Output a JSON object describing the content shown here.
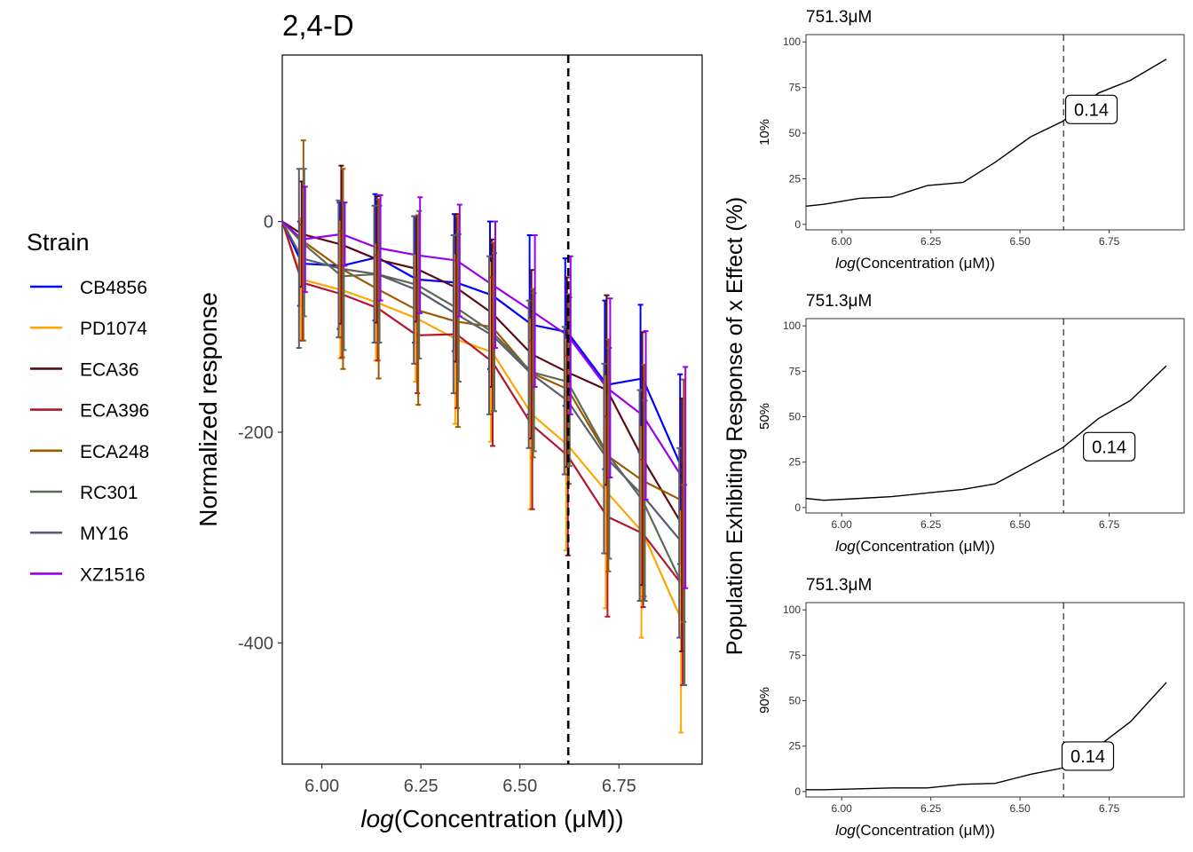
{
  "main_title": "2,4-D",
  "legend": {
    "title": "Strain",
    "items": [
      {
        "name": "CB4856",
        "color": "#0000FF"
      },
      {
        "name": "PD1074",
        "color": "#FFA500"
      },
      {
        "name": "ECA36",
        "color": "#5C0A14"
      },
      {
        "name": "ECA396",
        "color": "#B3162E"
      },
      {
        "name": "ECA248",
        "color": "#9C5A00"
      },
      {
        "name": "RC301",
        "color": "#5B6B55"
      },
      {
        "name": "MY16",
        "color": "#5C5C6E"
      },
      {
        "name": "XZ1516",
        "color": "#9B00EE"
      }
    ]
  },
  "right_ylabel": "Population Exhibiting Response of x Effect (%)",
  "chart_data": [
    {
      "type": "line",
      "title": "2,4-D",
      "xlabel_italic": "log",
      "xlabel_rest": "(Concentration (μM))",
      "ylabel": "Normalized response",
      "xlim": [
        5.9,
        6.96
      ],
      "ylim": [
        -515,
        158
      ],
      "x_ticks": [
        6.0,
        6.25,
        6.5,
        6.75
      ],
      "x_tick_labels": [
        "6.00",
        "6.25",
        "6.50",
        "6.75"
      ],
      "y_ticks": [
        0,
        -200,
        -400
      ],
      "y_tick_labels": [
        "0",
        "-200",
        "-400"
      ],
      "vline_x": 6.622,
      "x": [
        5.9,
        5.95,
        6.05,
        6.14,
        6.24,
        6.34,
        6.43,
        6.53,
        6.62,
        6.72,
        6.81,
        6.91
      ],
      "series": [
        {
          "name": "CB4856",
          "values": [
            0,
            -40,
            -42,
            -34,
            -55,
            -58,
            -70,
            -98,
            -105,
            -155,
            -149,
            -235
          ]
        },
        {
          "name": "PD1074",
          "values": [
            0,
            -55,
            -65,
            -77,
            -92,
            -112,
            -124,
            -183,
            -212,
            -257,
            -295,
            -380
          ]
        },
        {
          "name": "ECA36",
          "values": [
            0,
            -12,
            -22,
            -36,
            -45,
            -63,
            -87,
            -126,
            -143,
            -160,
            -225,
            -288
          ]
        },
        {
          "name": "ECA396",
          "values": [
            0,
            -58,
            -69,
            -82,
            -108,
            -107,
            -133,
            -193,
            -222,
            -280,
            -296,
            -345
          ]
        },
        {
          "name": "ECA248",
          "values": [
            0,
            -18,
            -45,
            -64,
            -84,
            -95,
            -100,
            -144,
            -159,
            -222,
            -246,
            -265
          ]
        },
        {
          "name": "RC301",
          "values": [
            0,
            -20,
            -52,
            -50,
            -60,
            -82,
            -105,
            -143,
            -152,
            -220,
            -265,
            -345
          ]
        },
        {
          "name": "MY16",
          "values": [
            0,
            -35,
            -45,
            -50,
            -65,
            -88,
            -108,
            -145,
            -170,
            -225,
            -260,
            -305
          ]
        },
        {
          "name": "XZ1516",
          "values": [
            0,
            -17,
            -12,
            -25,
            -32,
            -37,
            -60,
            -85,
            -108,
            -158,
            -184,
            -243
          ]
        }
      ],
      "error_bars": [
        {
          "name": "CB4856",
          "half_width": [
            0,
            40,
            60,
            60,
            60,
            65,
            70,
            85,
            70,
            80,
            70,
            90
          ]
        },
        {
          "name": "PD1074",
          "half_width": [
            0,
            58,
            65,
            55,
            60,
            80,
            85,
            90,
            100,
            110,
            100,
            105
          ]
        },
        {
          "name": "ECA36",
          "half_width": [
            0,
            50,
            75,
            60,
            50,
            70,
            70,
            80,
            90,
            90,
            120,
            120
          ]
        },
        {
          "name": "ECA396",
          "half_width": [
            0,
            55,
            60,
            50,
            55,
            70,
            80,
            80,
            95,
            95,
            70,
            95
          ]
        },
        {
          "name": "ECA248",
          "half_width": [
            0,
            95,
            95,
            85,
            90,
            100,
            80,
            80,
            90,
            110,
            110,
            115
          ]
        },
        {
          "name": "RC301",
          "half_width": [
            0,
            70,
            70,
            65,
            70,
            70,
            75,
            75,
            80,
            100,
            95,
            95
          ]
        },
        {
          "name": "MY16",
          "half_width": [
            0,
            85,
            65,
            65,
            70,
            75,
            75,
            70,
            70,
            90,
            100,
            90
          ]
        },
        {
          "name": "XZ1516",
          "half_width": [
            0,
            50,
            30,
            50,
            55,
            53,
            60,
            72,
            75,
            85,
            80,
            105
          ]
        }
      ]
    },
    {
      "type": "line",
      "title": "751.3μM",
      "ylabel": "10%",
      "xlabel_italic": "log",
      "xlabel_rest": "(Concentration (μM))",
      "xlim": [
        5.9,
        6.96
      ],
      "ylim": [
        -3,
        104
      ],
      "x_ticks": [
        6.0,
        6.25,
        6.5,
        6.75
      ],
      "x_tick_labels": [
        "6.00",
        "6.25",
        "6.50",
        "6.75"
      ],
      "y_ticks": [
        0,
        25,
        50,
        75,
        100
      ],
      "y_tick_labels": [
        "0",
        "25",
        "50",
        "75",
        "100"
      ],
      "vline_x": 6.622,
      "annotation": {
        "label": "0.14",
        "x": 6.7,
        "y": 63
      },
      "x": [
        5.9,
        5.95,
        6.05,
        6.14,
        6.24,
        6.34,
        6.43,
        6.53,
        6.62,
        6.72,
        6.81,
        6.91
      ],
      "values": [
        10,
        11,
        14.3,
        15,
        21.3,
        23,
        34,
        48,
        56.5,
        72,
        79,
        90.5
      ]
    },
    {
      "type": "line",
      "title": "751.3μM",
      "ylabel": "50%",
      "xlabel_italic": "log",
      "xlabel_rest": "(Concentration (μM))",
      "xlim": [
        5.9,
        6.96
      ],
      "ylim": [
        -3,
        104
      ],
      "x_ticks": [
        6.0,
        6.25,
        6.5,
        6.75
      ],
      "x_tick_labels": [
        "6.00",
        "6.25",
        "6.50",
        "6.75"
      ],
      "y_ticks": [
        0,
        25,
        50,
        75,
        100
      ],
      "y_tick_labels": [
        "0",
        "25",
        "50",
        "75",
        "100"
      ],
      "vline_x": 6.622,
      "annotation": {
        "label": "0.14",
        "x": 6.75,
        "y": 33.5
      },
      "x": [
        5.9,
        5.95,
        6.05,
        6.14,
        6.24,
        6.34,
        6.43,
        6.53,
        6.62,
        6.72,
        6.81,
        6.91
      ],
      "values": [
        5,
        4,
        5,
        6,
        8,
        10,
        13,
        23.5,
        33,
        49,
        59,
        78
      ]
    },
    {
      "type": "line",
      "title": "751.3μM",
      "ylabel": "90%",
      "xlabel_italic": "log",
      "xlabel_rest": "(Concentration (μM))",
      "xlim": [
        5.9,
        6.96
      ],
      "ylim": [
        -3,
        104
      ],
      "x_ticks": [
        6.0,
        6.25,
        6.5,
        6.75
      ],
      "x_tick_labels": [
        "6.00",
        "6.25",
        "6.50",
        "6.75"
      ],
      "y_ticks": [
        0,
        25,
        50,
        75,
        100
      ],
      "y_tick_labels": [
        "0",
        "25",
        "50",
        "75",
        "100"
      ],
      "vline_x": 6.622,
      "annotation": {
        "label": "0.14",
        "x": 6.69,
        "y": 19.5
      },
      "x": [
        5.9,
        5.95,
        6.05,
        6.14,
        6.24,
        6.34,
        6.43,
        6.53,
        6.62,
        6.72,
        6.81,
        6.91
      ],
      "values": [
        1,
        1,
        1.5,
        2,
        2,
        4,
        4.5,
        9.5,
        13,
        25,
        38.5,
        60
      ]
    }
  ]
}
